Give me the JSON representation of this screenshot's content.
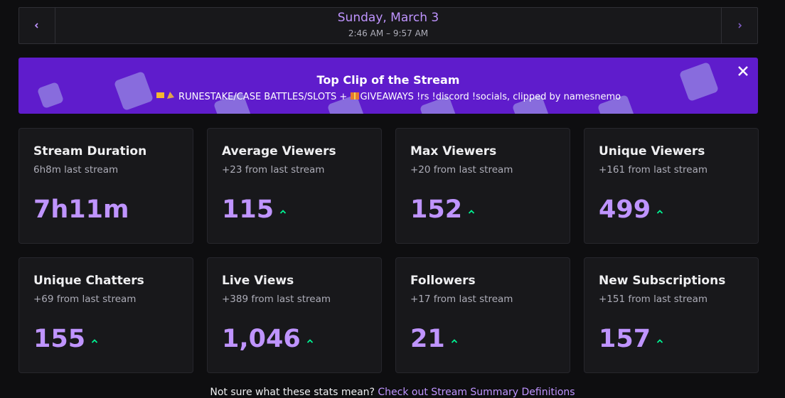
{
  "header": {
    "date": "Sunday, March 3",
    "time_range": "2:46 AM – 9:57 AM"
  },
  "banner": {
    "title": "Top Clip of the Stream",
    "subtitle_part1": "RUNESTAKE/CASE BATTLES/SLOTS +",
    "subtitle_part2": "GIVEAWAYS !rs !discord !socials, clipped by namesnemo"
  },
  "stats": [
    {
      "title": "Stream Duration",
      "change": "6h8m last stream",
      "value": "7h11m",
      "trend_up": false
    },
    {
      "title": "Average Viewers",
      "change": "+23 from last stream",
      "value": "115",
      "trend_up": true
    },
    {
      "title": "Max Viewers",
      "change": "+20 from last stream",
      "value": "152",
      "trend_up": true
    },
    {
      "title": "Unique Viewers",
      "change": "+161 from last stream",
      "value": "499",
      "trend_up": true
    },
    {
      "title": "Unique Chatters",
      "change": "+69 from last stream",
      "value": "155",
      "trend_up": true
    },
    {
      "title": "Live Views",
      "change": "+389 from last stream",
      "value": "1,046",
      "trend_up": true
    },
    {
      "title": "Followers",
      "change": "+17 from last stream",
      "value": "21",
      "trend_up": true
    },
    {
      "title": "New Subscriptions",
      "change": "+151 from last stream",
      "value": "157",
      "trend_up": true
    }
  ],
  "footer": {
    "question": "Not sure what these stats mean?",
    "link": "Check out Stream Summary Definitions"
  }
}
